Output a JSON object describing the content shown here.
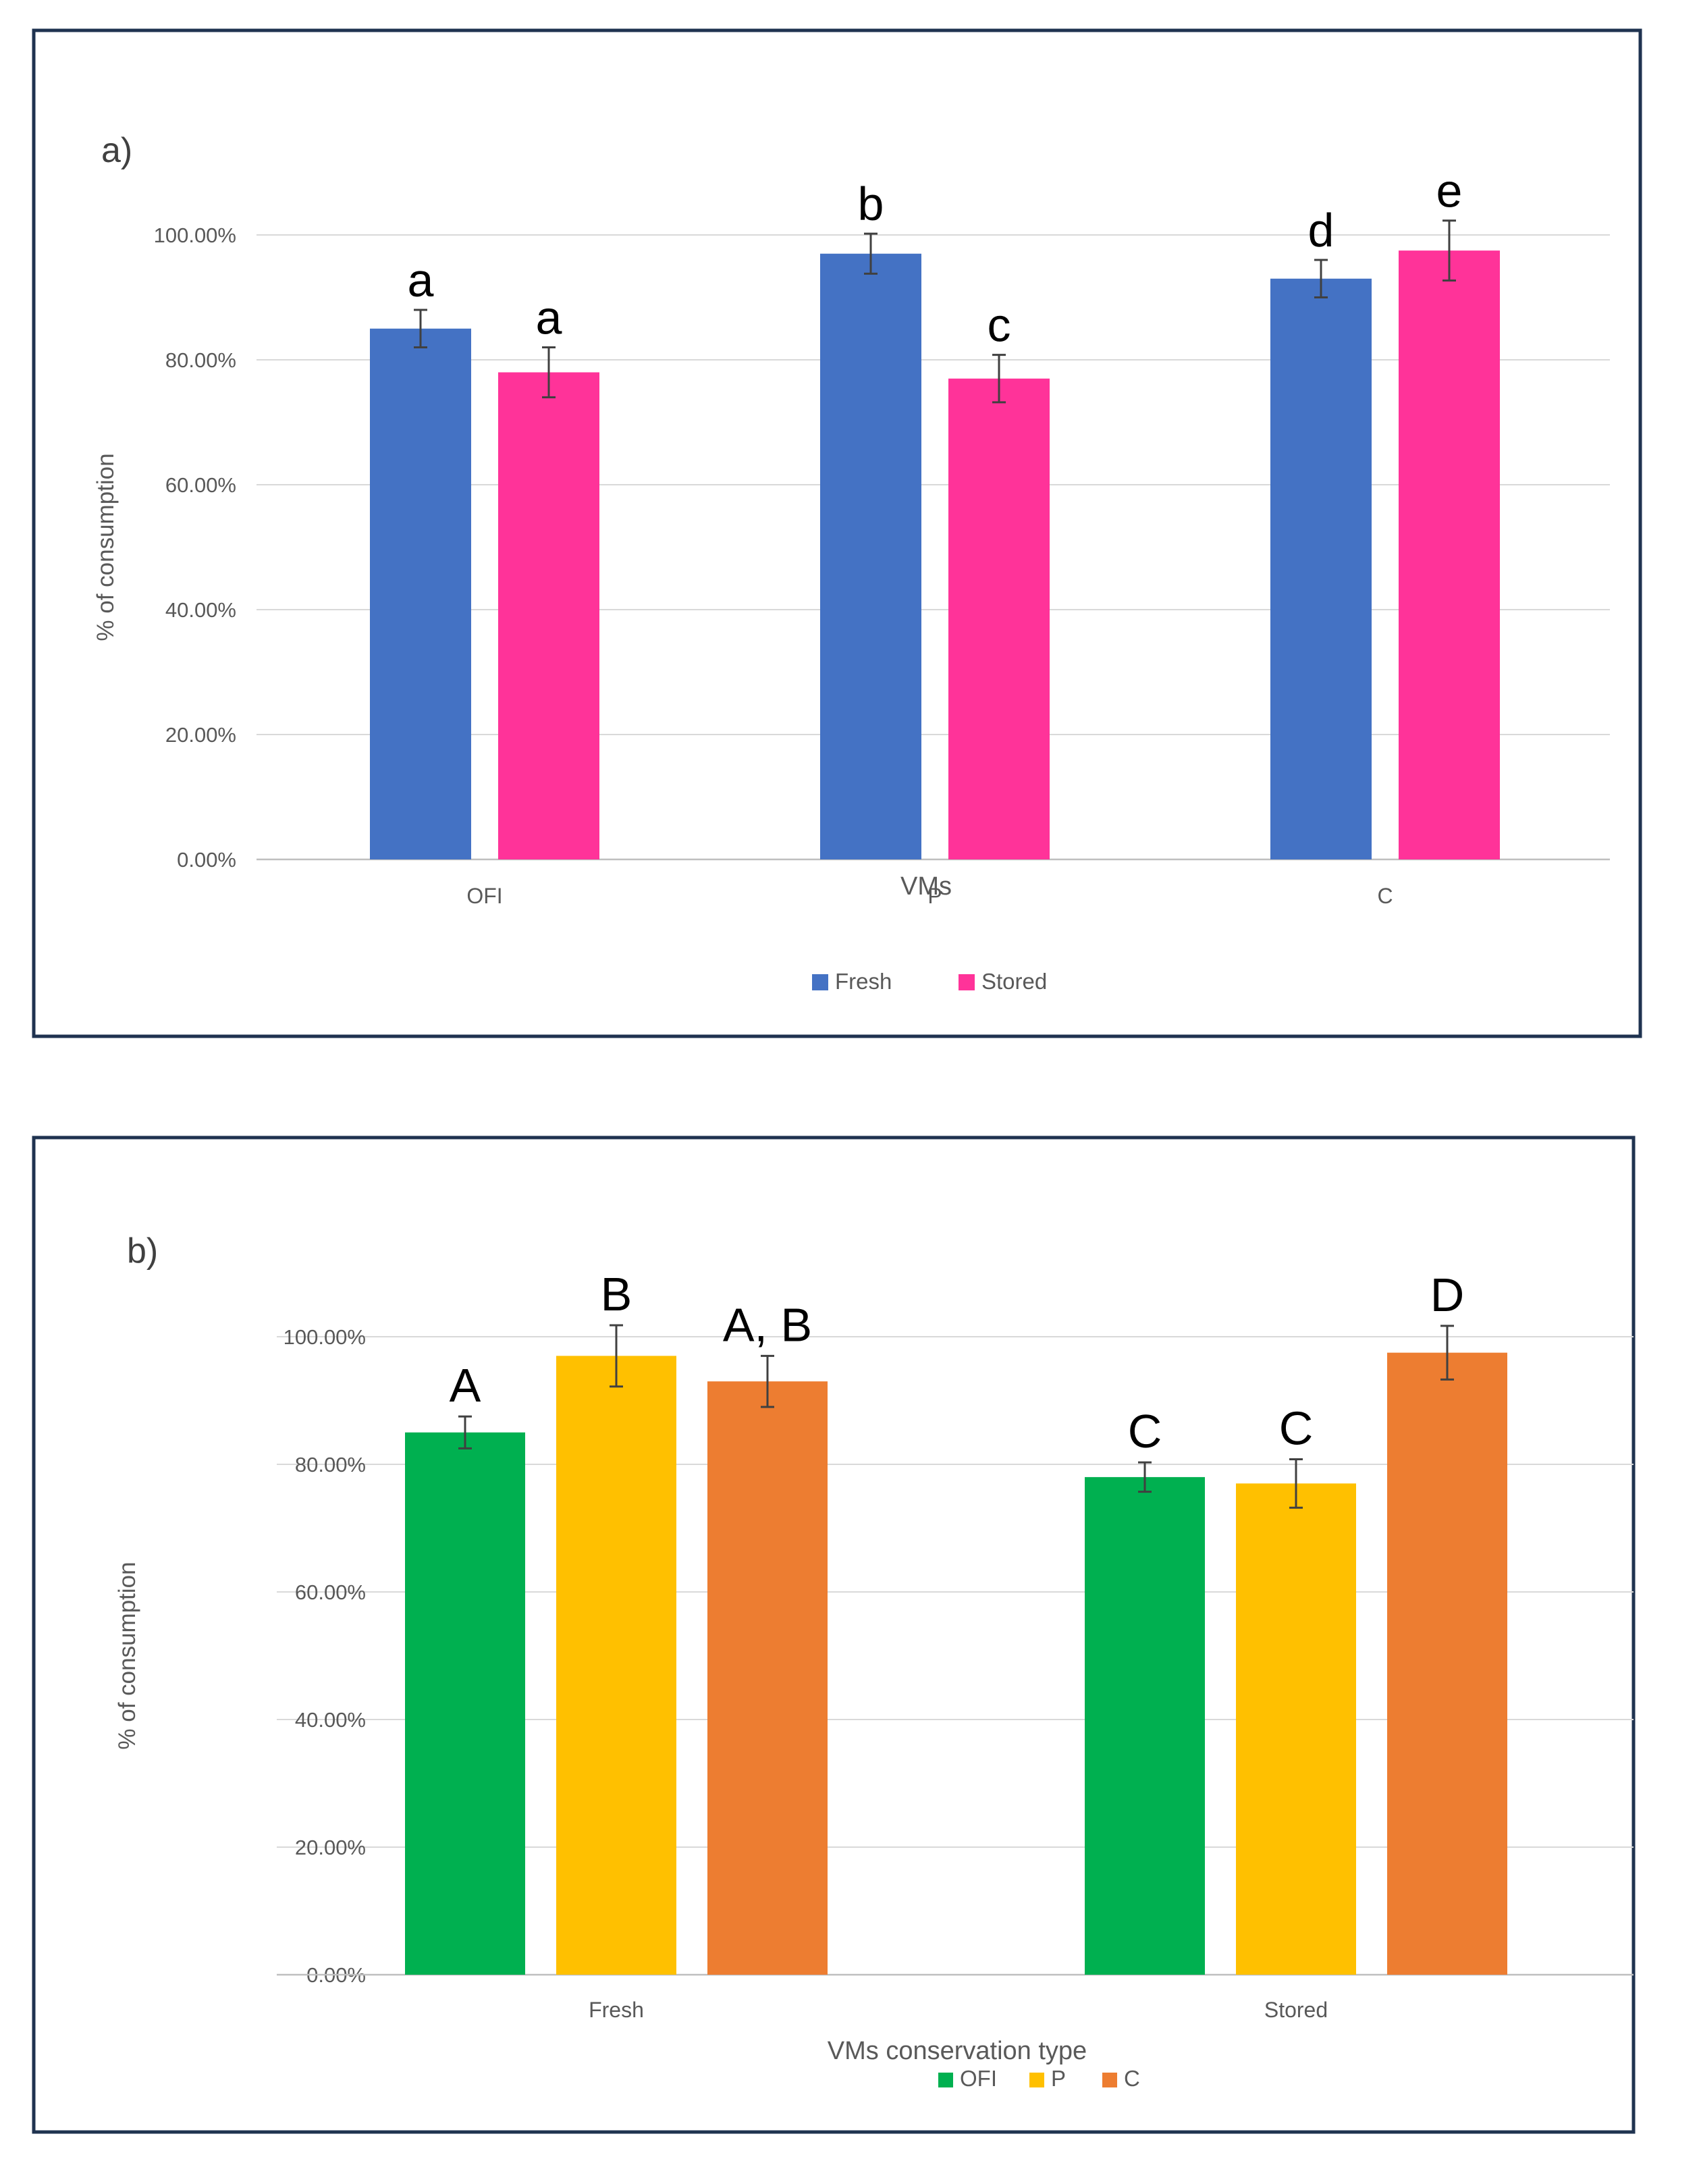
{
  "chart_data": [
    {
      "type": "bar",
      "panel_label": "a)",
      "title": "",
      "xlabel": "VMs",
      "ylabel": "% of consumption",
      "ylim": [
        0,
        100
      ],
      "yticks": [
        "0.00%",
        "20.00%",
        "40.00%",
        "60.00%",
        "80.00%",
        "100.00%"
      ],
      "categories": [
        "OFI",
        "P",
        "C"
      ],
      "series": [
        {
          "name": "Fresh",
          "color": "#4472C4",
          "values": [
            85.0,
            97.0,
            93.0
          ],
          "errors": [
            3.0,
            3.2,
            3.0
          ],
          "labels": [
            "a",
            "b",
            "d"
          ]
        },
        {
          "name": "Stored",
          "color": "#FF3399",
          "values": [
            78.0,
            77.0,
            97.5
          ],
          "errors": [
            4.0,
            3.8,
            4.8
          ],
          "labels": [
            "a",
            "c",
            "e"
          ]
        }
      ],
      "legend": "bottom"
    },
    {
      "type": "bar",
      "panel_label": "b)",
      "title": "",
      "xlabel": "VMs conservation type",
      "ylabel": "% of consumption",
      "ylim": [
        0,
        100
      ],
      "yticks": [
        "0.00%",
        "20.00%",
        "40.00%",
        "60.00%",
        "80.00%",
        "100.00%"
      ],
      "categories": [
        "Fresh",
        "Stored"
      ],
      "series": [
        {
          "name": "OFI",
          "color": "#00B050",
          "values": [
            85.0,
            78.0
          ],
          "errors": [
            2.5,
            2.3
          ],
          "labels": [
            "A",
            "C"
          ]
        },
        {
          "name": "P",
          "color": "#FFC000",
          "values": [
            97.0,
            77.0
          ],
          "errors": [
            4.8,
            3.8
          ],
          "labels": [
            "B",
            "C"
          ]
        },
        {
          "name": "C",
          "color": "#ED7D31",
          "values": [
            93.0,
            97.5
          ],
          "errors": [
            4.0,
            4.2
          ],
          "labels": [
            "A, B",
            "D"
          ]
        }
      ],
      "legend": "bottom"
    }
  ]
}
